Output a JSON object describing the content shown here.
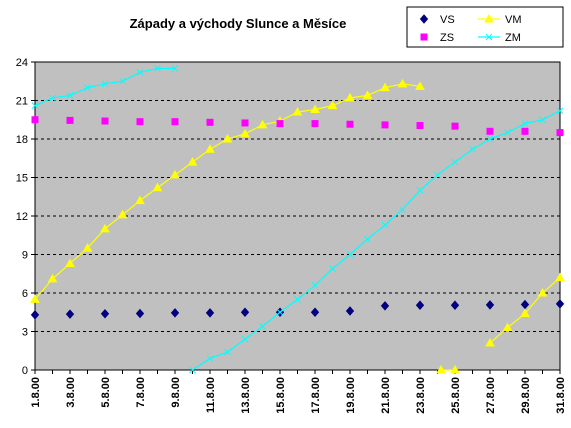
{
  "chart_data": {
    "type": "line",
    "title": "Západy a východy Slunce a Měsíce",
    "xlabel": "",
    "ylabel": "",
    "ylim": [
      0,
      24
    ],
    "yticks": [
      0,
      3,
      6,
      9,
      12,
      15,
      18,
      21,
      24
    ],
    "x_range": [
      1,
      31
    ],
    "x_tick_values": [
      1,
      3,
      5,
      7,
      9,
      11,
      13,
      15,
      17,
      19,
      21,
      23,
      25,
      27,
      29,
      31
    ],
    "x_tick_labels": [
      "1.8.00",
      "3.8.00",
      "5.8.00",
      "7.8.00",
      "9.8.00",
      "11.8.00",
      "13.8.00",
      "15.8.00",
      "17.8.00",
      "19.8.00",
      "21.8.00",
      "23.8.00",
      "25.8.00",
      "27.8.00",
      "29.8.00",
      "31.8.00"
    ],
    "grid": {
      "horizontal": true,
      "style": "dashed"
    },
    "plot_background": "#c0c0c0",
    "legend_position": "top-right",
    "series": [
      {
        "name": "VS",
        "color": "#000080",
        "marker": "diamond",
        "line": false,
        "points": [
          [
            1,
            4.3
          ],
          [
            3,
            4.35
          ],
          [
            5,
            4.38
          ],
          [
            7,
            4.4
          ],
          [
            9,
            4.45
          ],
          [
            11,
            4.45
          ],
          [
            13,
            4.5
          ],
          [
            15,
            4.5
          ],
          [
            17,
            4.5
          ],
          [
            19,
            4.6
          ],
          [
            21,
            5.0
          ],
          [
            23,
            5.05
          ],
          [
            25,
            5.05
          ],
          [
            27,
            5.07
          ],
          [
            29,
            5.1
          ],
          [
            31,
            5.15
          ]
        ]
      },
      {
        "name": "VM",
        "color": "#ffff00",
        "marker": "triangle",
        "line": true,
        "segments": [
          [
            [
              1,
              5.5
            ],
            [
              2,
              7.1
            ],
            [
              3,
              8.3
            ],
            [
              4,
              9.5
            ],
            [
              5,
              11.0
            ],
            [
              6,
              12.1
            ],
            [
              7,
              13.2
            ],
            [
              8,
              14.2
            ],
            [
              9,
              15.2
            ],
            [
              10,
              16.2
            ],
            [
              11,
              17.2
            ],
            [
              12,
              18.0
            ],
            [
              13,
              18.4
            ],
            [
              14,
              19.1
            ],
            [
              15,
              19.4
            ],
            [
              16,
              20.1
            ],
            [
              17,
              20.3
            ],
            [
              18,
              20.6
            ],
            [
              19,
              21.2
            ],
            [
              20,
              21.4
            ],
            [
              21,
              22.0
            ],
            [
              22,
              22.3
            ],
            [
              23,
              22.1
            ]
          ],
          [
            [
              24.2,
              0.0
            ],
            [
              25,
              0.0
            ]
          ],
          [
            [
              27,
              2.1
            ],
            [
              28,
              3.3
            ],
            [
              29,
              4.4
            ],
            [
              30,
              6.0
            ],
            [
              31,
              7.2
            ]
          ]
        ]
      },
      {
        "name": "ZS",
        "color": "#ff00ff",
        "marker": "square",
        "line": false,
        "points": [
          [
            1,
            19.5
          ],
          [
            3,
            19.45
          ],
          [
            5,
            19.4
          ],
          [
            7,
            19.35
          ],
          [
            9,
            19.35
          ],
          [
            11,
            19.3
          ],
          [
            13,
            19.25
          ],
          [
            15,
            19.2
          ],
          [
            17,
            19.2
          ],
          [
            19,
            19.15
          ],
          [
            21,
            19.1
          ],
          [
            23,
            19.05
          ],
          [
            25,
            19.0
          ],
          [
            27,
            18.6
          ],
          [
            29,
            18.6
          ],
          [
            31,
            18.5
          ]
        ]
      },
      {
        "name": "ZM",
        "color": "#00ffff",
        "marker": "cross",
        "line": true,
        "segments": [
          [
            [
              1,
              20.6
            ],
            [
              2,
              21.2
            ],
            [
              3,
              21.4
            ],
            [
              4,
              22.0
            ],
            [
              5,
              22.3
            ],
            [
              6,
              22.5
            ],
            [
              7,
              23.2
            ],
            [
              8,
              23.5
            ],
            [
              9,
              23.5
            ]
          ],
          [
            [
              10,
              0.0
            ],
            [
              11,
              0.9
            ],
            [
              12,
              1.4
            ],
            [
              13,
              2.4
            ],
            [
              14,
              3.4
            ],
            [
              15,
              4.5
            ],
            [
              16,
              5.5
            ],
            [
              17,
              6.6
            ],
            [
              18,
              7.9
            ],
            [
              19,
              9.0
            ],
            [
              20,
              10.2
            ],
            [
              21,
              11.3
            ],
            [
              22,
              12.5
            ],
            [
              23,
              14.0
            ],
            [
              24,
              15.2
            ],
            [
              25,
              16.2
            ],
            [
              26,
              17.2
            ],
            [
              27,
              18.0
            ],
            [
              28,
              18.5
            ],
            [
              29,
              19.2
            ],
            [
              30,
              19.5
            ],
            [
              31,
              20.2
            ]
          ]
        ]
      }
    ]
  }
}
